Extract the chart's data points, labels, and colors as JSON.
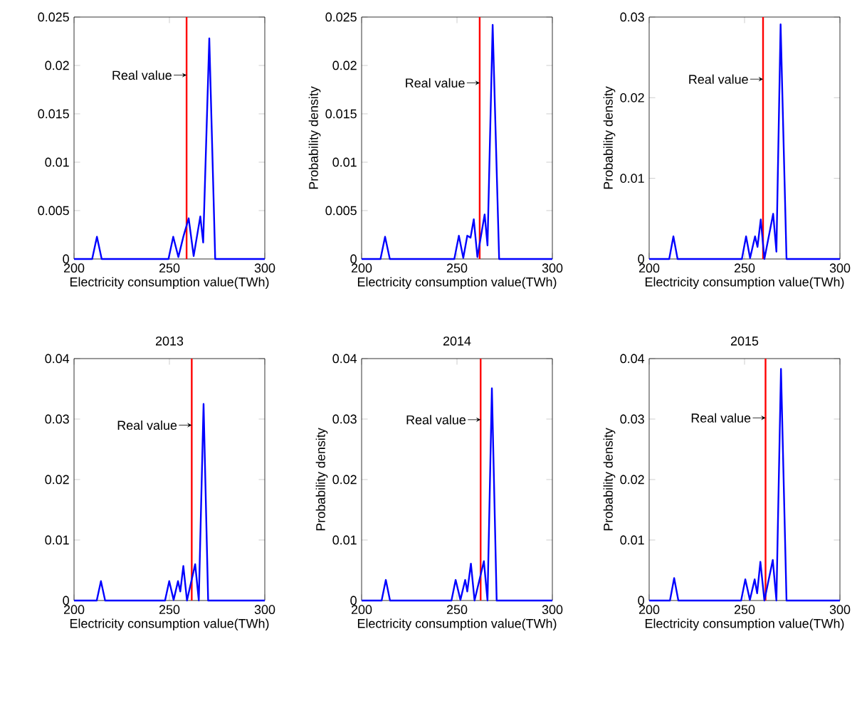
{
  "chart_data": [
    {
      "type": "line",
      "xlabel": "Electricity consumption value(TWh)",
      "x": [
        200,
        209.5,
        212,
        214.5,
        249.5,
        252,
        254.7,
        257.3,
        260.1,
        262.7,
        266.2,
        267.7,
        270.9,
        274,
        300
      ],
      "series": [
        {
          "color": "#0000ff",
          "values": [
            0,
            0,
            0.0023,
            0,
            0,
            0.0023,
            0.0002,
            0.0023,
            0.0042,
            0.0003,
            0.0044,
            0.0017,
            0.0228,
            0,
            0
          ]
        }
      ],
      "xlim": [
        200,
        300
      ],
      "ylim": [
        0,
        0.025
      ],
      "xticks": [
        200,
        250,
        300
      ],
      "yticks": [
        0,
        0.005,
        0.01,
        0.015,
        0.02,
        0.025
      ],
      "ref_lines": [
        {
          "axis": "x",
          "value": 259,
          "color": "#ff0000"
        }
      ],
      "annotations": [
        {
          "text": "Real value",
          "x": 259,
          "y": 0.019
        }
      ]
    },
    {
      "type": "line",
      "xlabel": "Electricity consumption value(TWh)",
      "ylabel": "Probability density",
      "x": [
        200,
        209.9,
        212.3,
        214.8,
        248.6,
        251,
        253.3,
        255.4,
        257.1,
        258.8,
        260.7,
        264.5,
        266,
        268.7,
        272.1,
        300
      ],
      "series": [
        {
          "color": "#0000ff",
          "values": [
            0,
            0,
            0.0023,
            0,
            0,
            0.0024,
            0.0001,
            0.0024,
            0.0022,
            0.0041,
            0.0002,
            0.0046,
            0.0014,
            0.0242,
            0,
            0
          ]
        }
      ],
      "xlim": [
        200,
        300
      ],
      "ylim": [
        0,
        0.025
      ],
      "xticks": [
        200,
        250,
        300
      ],
      "yticks": [
        0,
        0.005,
        0.01,
        0.015,
        0.02,
        0.025
      ],
      "ref_lines": [
        {
          "axis": "x",
          "value": 261.9,
          "color": "#ff0000"
        }
      ],
      "annotations": [
        {
          "text": "Real value",
          "x": 261.9,
          "y": 0.0182
        }
      ]
    },
    {
      "type": "line",
      "xlabel": "Electricity consumption value(TWh)",
      "ylabel": "Probability density",
      "x": [
        200,
        210.5,
        212.7,
        214.9,
        248.6,
        250.8,
        252.9,
        255.5,
        256.8,
        258.5,
        260.4,
        265,
        266.7,
        268.9,
        272,
        300
      ],
      "series": [
        {
          "color": "#0000ff",
          "values": [
            0,
            0,
            0.0028,
            0,
            0,
            0.0028,
            0.0001,
            0.0028,
            0.0015,
            0.0049,
            0,
            0.0056,
            0.0009,
            0.0291,
            0,
            0
          ]
        }
      ],
      "xlim": [
        200,
        300
      ],
      "ylim": [
        0,
        0.03
      ],
      "xticks": [
        200,
        250,
        300
      ],
      "yticks": [
        0,
        0.01,
        0.02,
        0.03
      ],
      "ref_lines": [
        {
          "axis": "x",
          "value": 259.7,
          "color": "#ff0000"
        }
      ],
      "annotations": [
        {
          "text": "Real value",
          "x": 259.7,
          "y": 0.0223
        }
      ]
    },
    {
      "type": "line",
      "title": "2013",
      "xlabel": "Electricity consumption value(TWh)",
      "x": [
        200,
        211.9,
        214.1,
        216.3,
        247.7,
        249.9,
        252.2,
        254.5,
        255.7,
        257.3,
        259.2,
        263.5,
        265.4,
        267.9,
        270.3,
        300
      ],
      "series": [
        {
          "color": "#0000ff",
          "values": [
            0,
            0,
            0.0032,
            0,
            0,
            0.0032,
            0.0001,
            0.0032,
            0.0015,
            0.0057,
            0,
            0.006,
            0,
            0.0325,
            0,
            0
          ]
        }
      ],
      "xlim": [
        200,
        300
      ],
      "ylim": [
        0,
        0.04
      ],
      "xticks": [
        200,
        250,
        300
      ],
      "yticks": [
        0,
        0.01,
        0.02,
        0.03,
        0.04
      ],
      "ref_lines": [
        {
          "axis": "x",
          "value": 261.7,
          "color": "#ff0000"
        }
      ],
      "annotations": [
        {
          "text": "Real value",
          "x": 261.7,
          "y": 0.029
        }
      ]
    },
    {
      "type": "line",
      "title": "2014",
      "xlabel": "Electricity consumption value(TWh)",
      "ylabel": "Probability density",
      "x": [
        200,
        210.5,
        212.7,
        214.9,
        247.1,
        249.3,
        251.8,
        254.3,
        255.4,
        257.3,
        259.2,
        264.1,
        266,
        268.3,
        270.8,
        300
      ],
      "series": [
        {
          "color": "#0000ff",
          "values": [
            0,
            0,
            0.0034,
            0,
            0,
            0.0034,
            0.0001,
            0.0034,
            0.0015,
            0.0061,
            0,
            0.0065,
            0,
            0.0351,
            0,
            0
          ]
        }
      ],
      "xlim": [
        200,
        300
      ],
      "ylim": [
        0,
        0.04
      ],
      "xticks": [
        200,
        250,
        300
      ],
      "yticks": [
        0,
        0.01,
        0.02,
        0.03,
        0.04
      ],
      "ref_lines": [
        {
          "axis": "x",
          "value": 262.4,
          "color": "#ff0000"
        }
      ],
      "annotations": [
        {
          "text": "Real value",
          "x": 262.4,
          "y": 0.0299
        }
      ]
    },
    {
      "type": "line",
      "title": "2015",
      "xlabel": "Electricity consumption value(TWh)",
      "ylabel": "Probability density",
      "x": [
        200,
        210.9,
        213.1,
        215.3,
        248.2,
        250.4,
        252.8,
        255.3,
        256.6,
        258.3,
        260.4,
        264.8,
        266.7,
        269.1,
        272,
        300
      ],
      "series": [
        {
          "color": "#0000ff",
          "values": [
            0,
            0,
            0.0037,
            0,
            0,
            0.0035,
            0.0001,
            0.0035,
            0.0012,
            0.0064,
            0,
            0.0067,
            0,
            0.0383,
            0,
            0
          ]
        }
      ],
      "xlim": [
        200,
        300
      ],
      "ylim": [
        0,
        0.04
      ],
      "xticks": [
        200,
        250,
        300
      ],
      "yticks": [
        0,
        0.01,
        0.02,
        0.03,
        0.04
      ],
      "ref_lines": [
        {
          "axis": "x",
          "value": 261,
          "color": "#ff0000"
        }
      ],
      "annotations": [
        {
          "text": "Real value",
          "x": 261,
          "y": 0.0302
        }
      ]
    }
  ]
}
